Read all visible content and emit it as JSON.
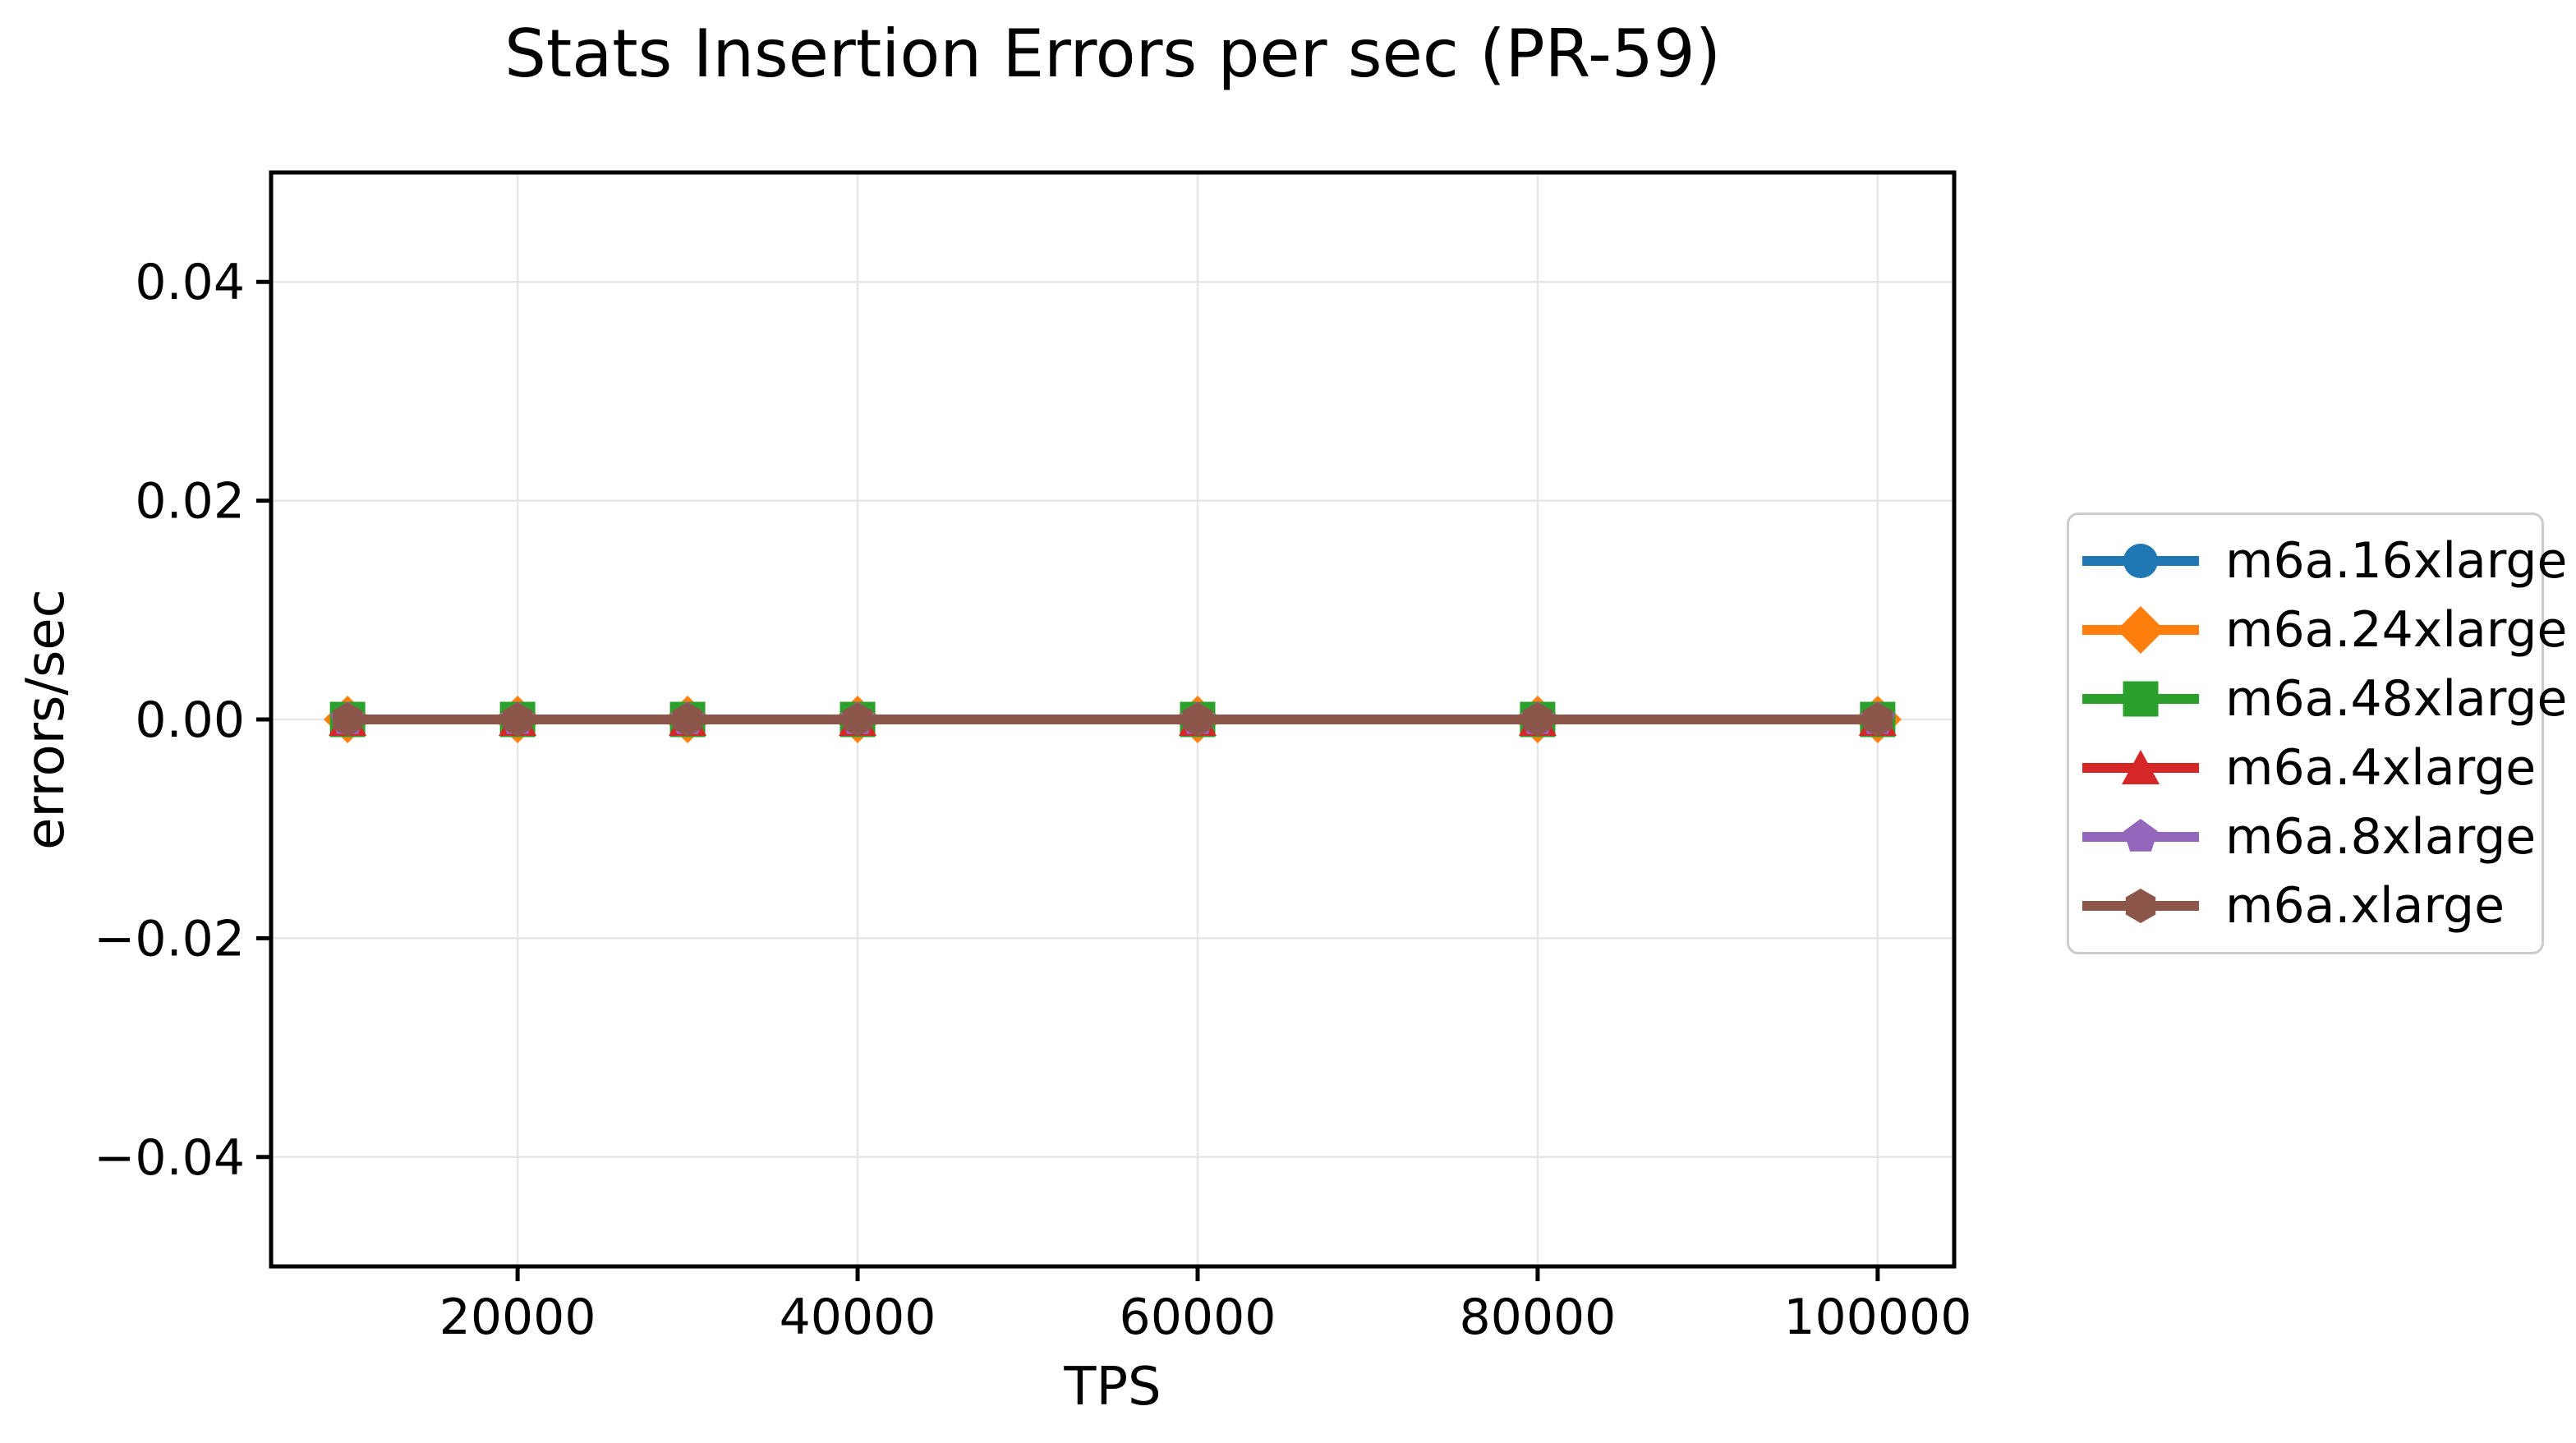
{
  "chart_data": {
    "type": "line",
    "title": "Stats Insertion Errors per sec (PR-59)",
    "xlabel": "TPS",
    "ylabel": "errors/sec",
    "x": [
      10000,
      20000,
      30000,
      40000,
      60000,
      80000,
      100000
    ],
    "series": [
      {
        "name": "m6a.16xlarge",
        "color": "#1f77b4",
        "marker": "circle",
        "values": [
          0,
          0,
          0,
          0,
          0,
          0,
          0
        ]
      },
      {
        "name": "m6a.24xlarge",
        "color": "#ff7f0e",
        "marker": "diamond",
        "values": [
          0,
          0,
          0,
          0,
          0,
          0,
          0
        ]
      },
      {
        "name": "m6a.48xlarge",
        "color": "#2ca02c",
        "marker": "square",
        "values": [
          0,
          0,
          0,
          0,
          0,
          0,
          0
        ]
      },
      {
        "name": "m6a.4xlarge",
        "color": "#d62728",
        "marker": "triangle",
        "values": [
          0,
          0,
          0,
          0,
          0,
          0,
          0
        ]
      },
      {
        "name": "m6a.8xlarge",
        "color": "#9467bd",
        "marker": "pentagon",
        "values": [
          0,
          0,
          0,
          0,
          0,
          0,
          0
        ]
      },
      {
        "name": "m6a.xlarge",
        "color": "#8c564b",
        "marker": "hexagon",
        "values": [
          0,
          0,
          0,
          0,
          0,
          0,
          0
        ]
      }
    ],
    "xlim": [
      5500,
      104500
    ],
    "ylim": [
      -0.05,
      0.05
    ],
    "xticks": [
      20000,
      40000,
      60000,
      80000,
      100000
    ],
    "xtick_labels": [
      "20000",
      "40000",
      "60000",
      "80000",
      "100000"
    ],
    "yticks": [
      0.04,
      0.02,
      0.0,
      -0.02,
      -0.04
    ],
    "ytick_labels": [
      "0.04",
      "0.02",
      "0.00",
      "−0.02",
      "−0.04"
    ],
    "grid": true,
    "legend_position": "center right, outside axes",
    "colors": {
      "grid": "#e6e6e6",
      "spine": "#000000",
      "text": "#000000",
      "legend_border": "#cccccc"
    }
  }
}
